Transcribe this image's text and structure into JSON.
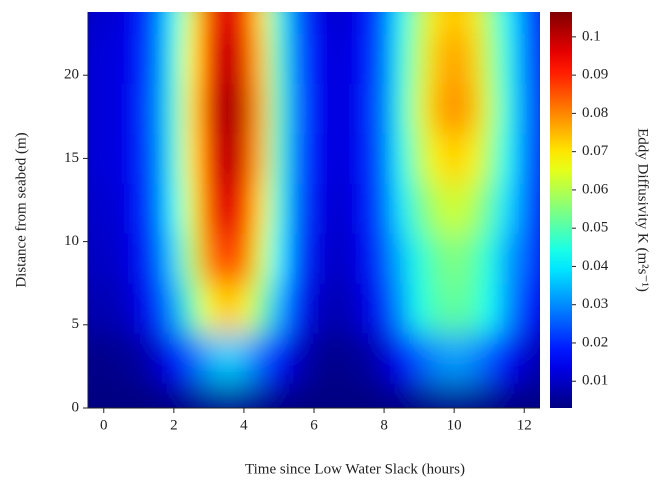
{
  "chart_data": {
    "type": "heatmap",
    "xlabel": "Time since Low Water Slack (hours)",
    "ylabel": "Distance from seabed (m)",
    "colorbar_label": "Eddy Diffusivity K (m²s⁻¹)",
    "colormap": "jet",
    "x": [
      -0.5,
      0,
      0.5,
      1,
      1.5,
      2,
      2.5,
      3,
      3.5,
      4,
      4.5,
      5,
      5.5,
      6,
      6.5,
      7,
      7.5,
      8,
      8.5,
      9,
      9.5,
      10,
      10.5,
      11,
      11.5,
      12,
      12.5
    ],
    "y": [
      0,
      3,
      6,
      9,
      12,
      15,
      18,
      21,
      24
    ],
    "z": [
      [
        0.001,
        0.001,
        0.001,
        0.001,
        0.001,
        0.002,
        0.004,
        0.005,
        0.005,
        0.005,
        0.004,
        0.002,
        0.001,
        0.001,
        0.001,
        0.001,
        0.001,
        0.001,
        0.002,
        0.003,
        0.004,
        0.004,
        0.004,
        0.003,
        0.002,
        0.002,
        0.001
      ],
      [
        0.004,
        0.004,
        0.005,
        0.006,
        0.01,
        0.016,
        0.025,
        0.033,
        0.037,
        0.034,
        0.026,
        0.017,
        0.01,
        0.006,
        0.004,
        0.005,
        0.006,
        0.01,
        0.016,
        0.025,
        0.03,
        0.032,
        0.03,
        0.025,
        0.016,
        0.011,
        0.008
      ],
      [
        0.008,
        0.008,
        0.009,
        0.013,
        0.02,
        0.032,
        0.049,
        0.067,
        0.074,
        0.069,
        0.053,
        0.034,
        0.02,
        0.011,
        0.008,
        0.009,
        0.013,
        0.02,
        0.032,
        0.044,
        0.05,
        0.052,
        0.05,
        0.043,
        0.032,
        0.021,
        0.015
      ],
      [
        0.01,
        0.01,
        0.011,
        0.015,
        0.024,
        0.038,
        0.06,
        0.081,
        0.089,
        0.083,
        0.064,
        0.041,
        0.024,
        0.014,
        0.01,
        0.011,
        0.015,
        0.024,
        0.035,
        0.045,
        0.052,
        0.055,
        0.052,
        0.045,
        0.033,
        0.026,
        0.019
      ],
      [
        0.011,
        0.011,
        0.012,
        0.017,
        0.026,
        0.042,
        0.065,
        0.088,
        0.098,
        0.091,
        0.07,
        0.045,
        0.026,
        0.015,
        0.011,
        0.012,
        0.017,
        0.026,
        0.04,
        0.052,
        0.06,
        0.063,
        0.06,
        0.051,
        0.039,
        0.028,
        0.02
      ],
      [
        0.012,
        0.012,
        0.013,
        0.018,
        0.027,
        0.044,
        0.069,
        0.093,
        0.103,
        0.096,
        0.074,
        0.047,
        0.027,
        0.016,
        0.012,
        0.013,
        0.018,
        0.027,
        0.043,
        0.059,
        0.069,
        0.073,
        0.069,
        0.058,
        0.043,
        0.029,
        0.022
      ],
      [
        0.012,
        0.012,
        0.013,
        0.018,
        0.028,
        0.045,
        0.07,
        0.095,
        0.105,
        0.098,
        0.075,
        0.048,
        0.028,
        0.016,
        0.012,
        0.013,
        0.018,
        0.028,
        0.045,
        0.063,
        0.075,
        0.08,
        0.075,
        0.062,
        0.045,
        0.03,
        0.022
      ],
      [
        0.012,
        0.012,
        0.013,
        0.017,
        0.027,
        0.044,
        0.068,
        0.092,
        0.102,
        0.095,
        0.073,
        0.047,
        0.027,
        0.016,
        0.012,
        0.013,
        0.017,
        0.027,
        0.044,
        0.061,
        0.073,
        0.078,
        0.073,
        0.06,
        0.044,
        0.029,
        0.021
      ],
      [
        0.011,
        0.011,
        0.012,
        0.017,
        0.026,
        0.042,
        0.065,
        0.088,
        0.098,
        0.091,
        0.07,
        0.045,
        0.026,
        0.015,
        0.011,
        0.012,
        0.017,
        0.026,
        0.042,
        0.059,
        0.07,
        0.074,
        0.07,
        0.058,
        0.042,
        0.028,
        0.02
      ]
    ],
    "xlim": [
      -0.45,
      12.45
    ],
    "xticks": [
      0,
      2,
      4,
      6,
      8,
      10,
      12
    ],
    "ylim": [
      0,
      23.8
    ],
    "yticks": [
      0,
      5,
      10,
      15,
      20
    ],
    "clim": [
      0.003,
      0.1065
    ],
    "cticks": [
      0.01,
      0.02,
      0.03,
      0.04,
      0.05,
      0.06,
      0.07,
      0.08,
      0.09,
      0.1
    ]
  }
}
